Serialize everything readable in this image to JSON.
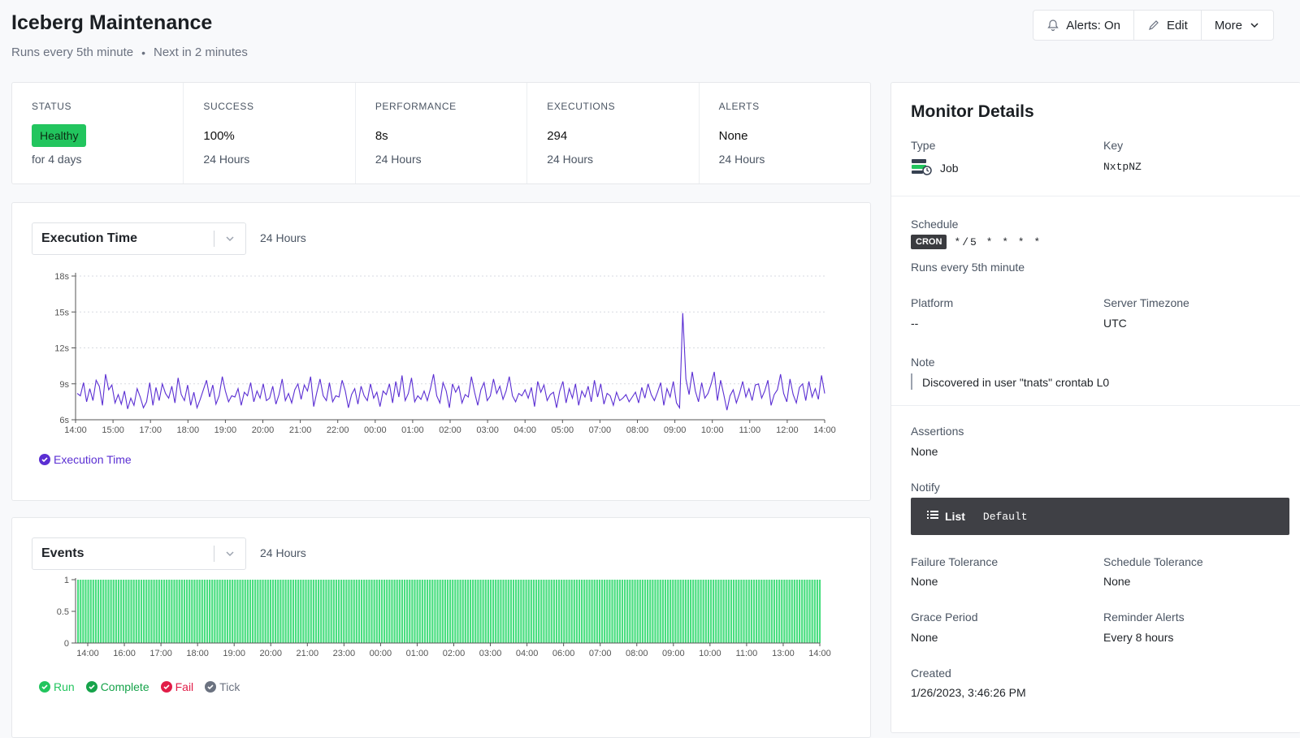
{
  "header": {
    "title": "Iceberg Maintenance",
    "schedule_text": "Runs every 5th minute",
    "separator": "•",
    "next_text": "Next in 2 minutes"
  },
  "actions": {
    "alerts": "Alerts: On",
    "edit": "Edit",
    "more": "More"
  },
  "stats": [
    {
      "label": "STATUS",
      "value": "Healthy",
      "sub": "for 4 days"
    },
    {
      "label": "SUCCESS",
      "value": "100%",
      "sub": "24 Hours"
    },
    {
      "label": "PERFORMANCE",
      "value": "8s",
      "sub": "24 Hours"
    },
    {
      "label": "EXECUTIONS",
      "value": "294",
      "sub": "24 Hours"
    },
    {
      "label": "ALERTS",
      "value": "None",
      "sub": "24 Hours"
    }
  ],
  "colors": {
    "healthy": "#22c55e",
    "line": "#5b2fd3",
    "bars": "#4ade80",
    "run": "#22c55e",
    "complete": "#16a34a",
    "fail": "#e11d48",
    "tick": "#6b7280"
  },
  "exec_chart": {
    "select_label": "Execution Time",
    "range": "24 Hours",
    "legend": "Execution Time"
  },
  "events_chart": {
    "select_label": "Events",
    "range": "24 Hours",
    "legend": [
      "Run",
      "Complete",
      "Fail",
      "Tick"
    ]
  },
  "chart_data": [
    {
      "type": "line",
      "title": "Execution Time",
      "y_ticks": [
        "6s",
        "9s",
        "12s",
        "15s",
        "18s"
      ],
      "ylim": [
        6,
        18
      ],
      "x_ticks": [
        "14:00",
        "15:00",
        "17:00",
        "18:00",
        "19:00",
        "20:00",
        "21:00",
        "22:00",
        "00:00",
        "01:00",
        "02:00",
        "03:00",
        "04:00",
        "05:00",
        "07:00",
        "08:00",
        "09:00",
        "10:00",
        "11:00",
        "12:00",
        "14:00"
      ],
      "grid": "horizontal dashed",
      "series": [
        {
          "name": "Execution Time",
          "values": [
            8.2,
            8.0,
            9.1,
            7.5,
            8.6,
            7.6,
            9.3,
            8.8,
            7.2,
            9.8,
            8.5,
            8.9,
            7.4,
            8.1,
            7.3,
            8.4,
            6.9,
            7.8,
            7.2,
            8.6,
            7.9,
            7.0,
            7.5,
            9.1,
            7.2,
            8.7,
            7.6,
            9.0,
            8.2,
            7.8,
            8.8,
            7.4,
            9.5,
            8.1,
            7.6,
            8.9,
            7.2,
            8.3,
            7.0,
            7.7,
            8.5,
            9.3,
            7.9,
            8.9,
            7.3,
            8.0,
            9.6,
            8.4,
            7.5,
            8.0,
            7.9,
            8.6,
            7.2,
            8.3,
            8.0,
            9.1,
            7.5,
            8.4,
            7.8,
            9.0,
            7.6,
            7.8,
            8.8,
            7.3,
            8.1,
            9.4,
            7.6,
            8.2,
            7.4,
            8.5,
            9.0,
            7.7,
            8.9,
            8.4,
            9.6,
            7.1,
            8.3,
            9.4,
            8.0,
            7.6,
            9.1,
            7.5,
            8.0,
            7.9,
            9.3,
            8.4,
            7.0,
            8.1,
            8.6,
            7.3,
            8.8,
            8.0,
            7.6,
            9.0,
            7.8,
            8.3,
            7.1,
            8.4,
            8.1,
            9.0,
            7.4,
            9.2,
            7.9,
            9.7,
            7.6,
            8.2,
            9.5,
            7.5,
            8.0,
            7.7,
            8.4,
            7.6,
            8.6,
            9.8,
            8.0,
            7.4,
            9.1,
            8.4,
            7.0,
            9.0,
            8.3,
            8.8,
            7.4,
            8.1,
            7.9,
            9.6,
            8.3,
            7.2,
            8.5,
            9.1,
            7.6,
            8.0,
            9.4,
            8.2,
            8.8,
            7.7,
            8.4,
            9.6,
            8.0,
            7.5,
            8.2,
            8.0,
            8.5,
            7.8,
            8.7,
            7.1,
            9.2,
            8.3,
            8.9,
            7.6,
            8.1,
            8.3,
            7.0,
            8.4,
            9.2,
            7.4,
            8.6,
            7.8,
            9.0,
            7.2,
            8.4,
            7.9,
            8.8,
            7.5,
            9.3,
            7.9,
            9.0,
            7.3,
            8.2,
            8.0,
            7.2,
            8.3,
            7.6,
            7.8,
            8.1,
            7.5,
            7.9,
            8.3,
            7.4,
            8.7,
            7.8,
            9.0,
            8.1,
            7.6,
            8.3,
            9.1,
            7.2,
            8.6,
            7.9,
            9.2,
            7.4,
            7.0,
            14.9,
            9.4,
            8.1,
            10.0,
            8.4,
            7.5,
            9.1,
            7.8,
            8.2,
            9.0,
            10.0,
            7.6,
            9.3,
            8.1,
            6.8,
            8.0,
            8.5,
            7.4,
            8.2,
            9.2,
            7.9,
            8.6,
            7.6,
            8.9,
            9.0,
            7.8,
            8.4,
            9.3,
            7.2,
            8.1,
            8.5,
            9.8,
            8.2,
            7.5,
            9.4,
            8.1,
            7.4,
            8.7,
            9.0,
            7.6,
            9.2,
            7.9,
            8.6,
            7.7,
            9.7,
            8.2
          ]
        }
      ]
    },
    {
      "type": "bar",
      "title": "Events",
      "y_ticks": [
        "0",
        "0.5",
        "1"
      ],
      "ylim": [
        0,
        1
      ],
      "x_ticks": [
        "14:00",
        "16:00",
        "17:00",
        "18:00",
        "19:00",
        "20:00",
        "21:00",
        "23:00",
        "00:00",
        "01:00",
        "02:00",
        "03:00",
        "04:00",
        "06:00",
        "07:00",
        "08:00",
        "09:00",
        "10:00",
        "11:00",
        "13:00",
        "14:00"
      ],
      "series": [
        {
          "name": "Run",
          "count": 294,
          "value": 1
        }
      ]
    }
  ],
  "details": {
    "title": "Monitor Details",
    "type_label": "Type",
    "type_value": "Job",
    "key_label": "Key",
    "key_value": "NxtpNZ",
    "schedule_label": "Schedule",
    "cron_badge": "CRON",
    "cron_expr": "*/5 * * * *",
    "schedule_desc": "Runs every 5th minute",
    "platform_label": "Platform",
    "platform_value": "--",
    "timezone_label": "Server Timezone",
    "timezone_value": "UTC",
    "note_label": "Note",
    "note_value": "Discovered in user \"tnats\" crontab L0",
    "assertions_label": "Assertions",
    "assertions_value": "None",
    "notify_label": "Notify",
    "notify_list": "List",
    "notify_value": "Default",
    "failure_tol_label": "Failure Tolerance",
    "failure_tol_value": "None",
    "schedule_tol_label": "Schedule Tolerance",
    "schedule_tol_value": "None",
    "grace_label": "Grace Period",
    "grace_value": "None",
    "reminder_label": "Reminder Alerts",
    "reminder_value": "Every 8 hours",
    "created_label": "Created",
    "created_value": "1/26/2023, 3:46:26 PM"
  }
}
